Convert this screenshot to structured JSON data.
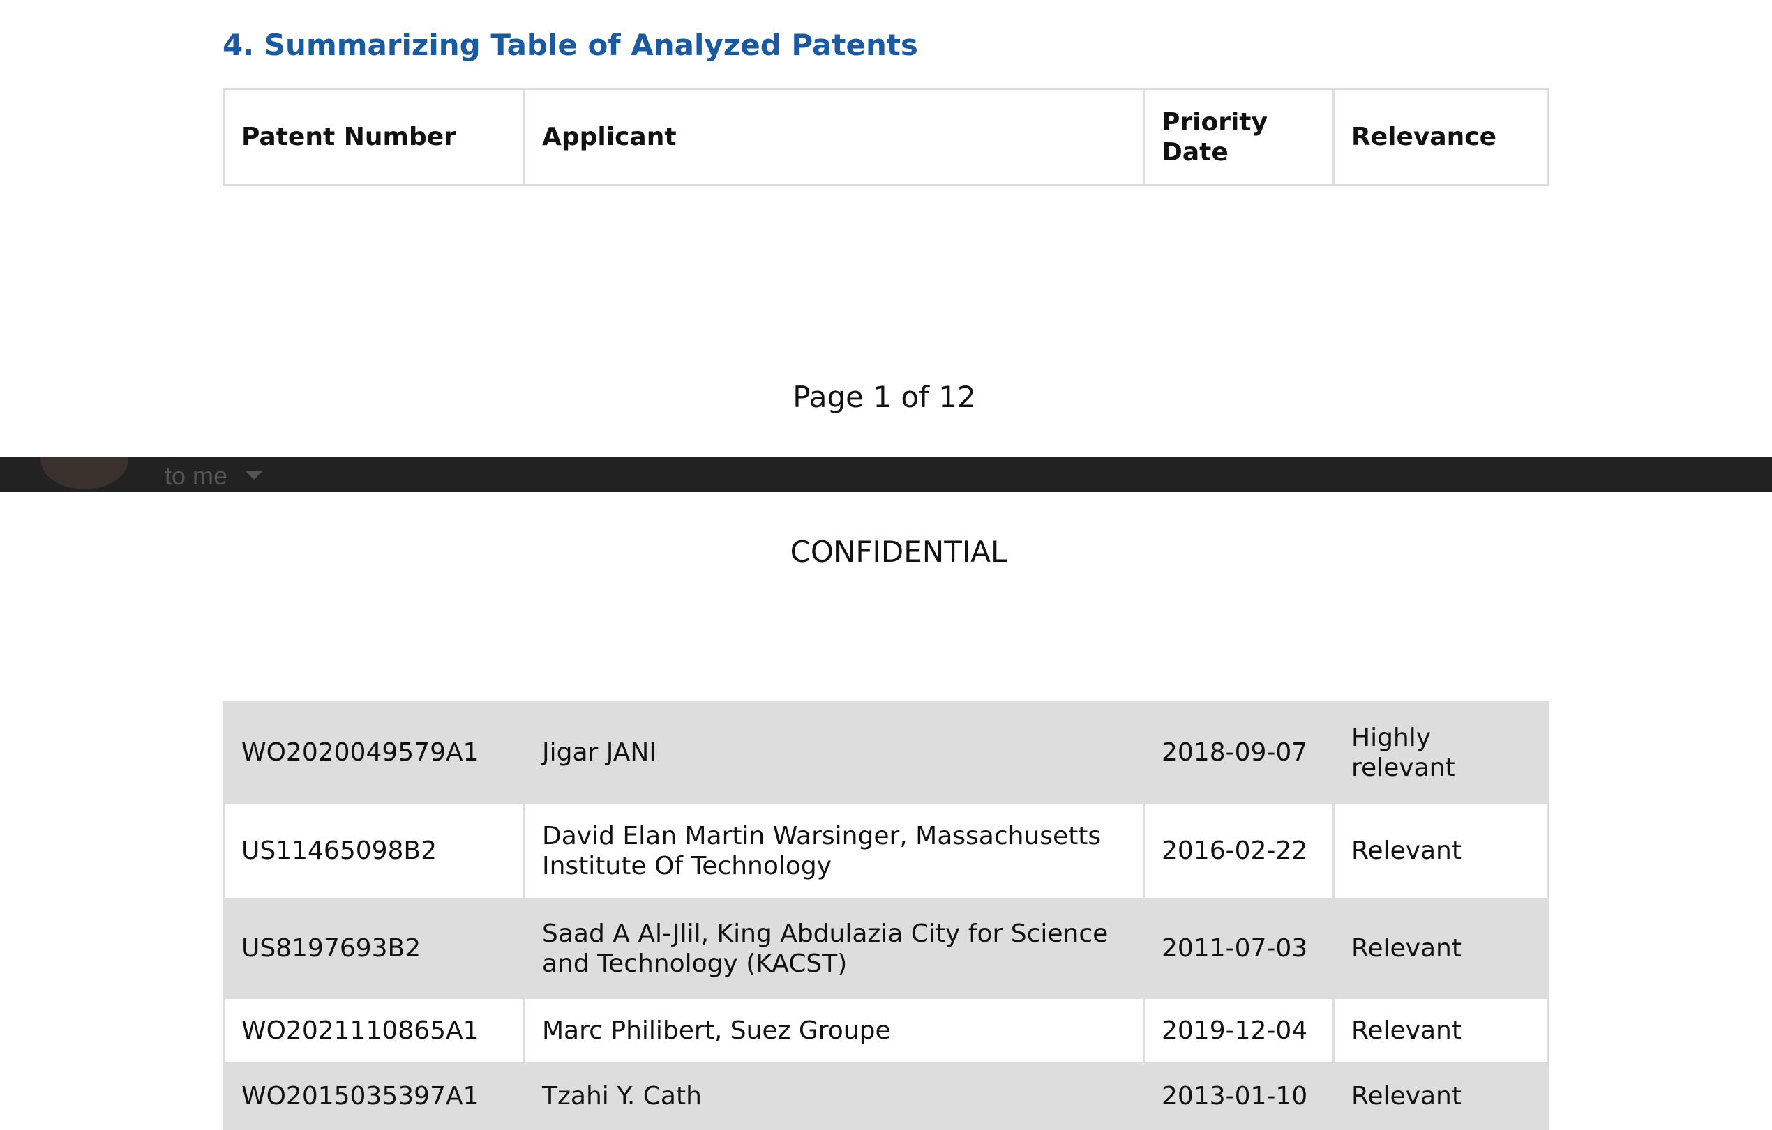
{
  "document": {
    "heading": "4. Summarizing Table of Analyzed Patents",
    "table_header": [
      "Patent Number",
      "Applicant",
      "Priority Date",
      "Relevance"
    ],
    "page_footer": "Page 1 of 12",
    "email_bar": {
      "recipient": "to me"
    },
    "confidential": "CONFIDENTIAL",
    "table": {
      "rows": [
        [
          "WO2020049579A1",
          "Jigar JANI",
          "2018-09-07",
          "Highly relevant"
        ],
        [
          "US11465098B2",
          "David Elan Martin Warsinger, Massachusetts Institute Of Technology",
          "2016-02-22",
          "Relevant"
        ],
        [
          "US8197693B2",
          "Saad A Al-Jlil, King Abdulazia City for Science and Technology (KACST)",
          "2011-07-03",
          "Relevant"
        ],
        [
          "WO2021110865A1",
          "Marc Philibert, Suez Groupe",
          "2019-12-04",
          "Relevant"
        ],
        [
          "WO2015035397A1",
          "Tzahi Y. Cath",
          "2013-01-10",
          "Relevant"
        ]
      ]
    }
  }
}
